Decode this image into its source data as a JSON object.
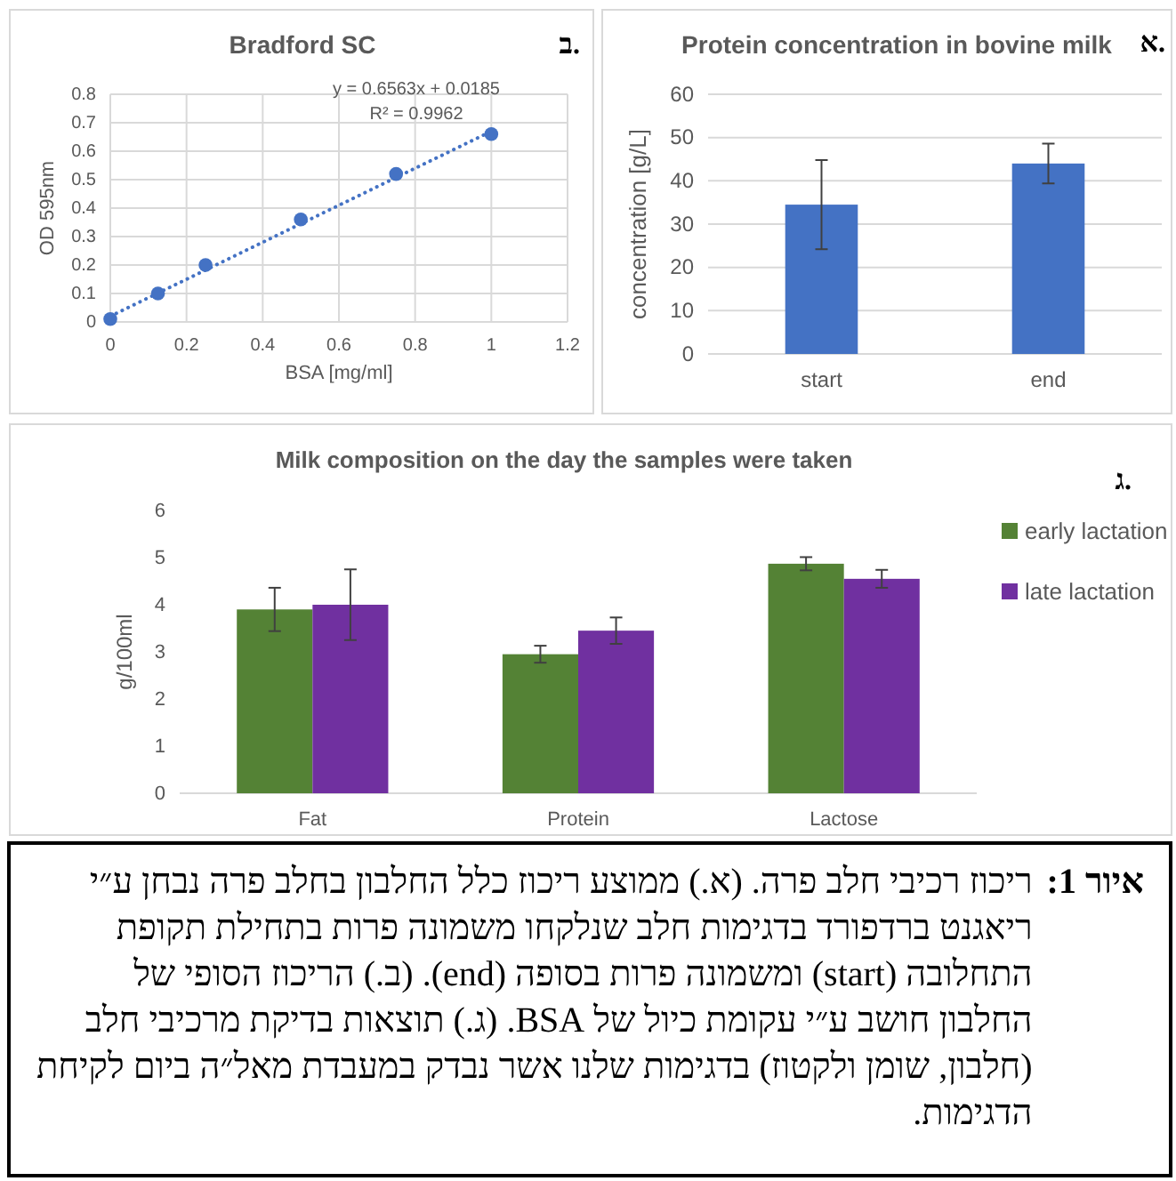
{
  "chart_data": [
    {
      "type": "scatter",
      "title": "Bradford SC",
      "xlabel": "BSA [mg/ml]",
      "ylabel": "OD 595nm",
      "xlim": [
        0,
        1.2
      ],
      "xticks": [
        0,
        0.2,
        0.4,
        0.6,
        0.8,
        1,
        1.2
      ],
      "ylim": [
        0,
        0.8
      ],
      "yticks": [
        0,
        0.1,
        0.2,
        0.3,
        0.4,
        0.5,
        0.6,
        0.7,
        0.8
      ],
      "grid": true,
      "series": [
        {
          "type": "scatter",
          "marker": "circle",
          "color": "#4472c4",
          "x": [
            0,
            0.125,
            0.25,
            0.5,
            0.75,
            1
          ],
          "values": [
            0.01,
            0.1,
            0.2,
            0.36,
            0.52,
            0.66
          ]
        },
        {
          "type": "line",
          "line_style": "dotted",
          "color": "#4472c4",
          "x": [
            0,
            1
          ],
          "values": [
            0.02,
            0.67
          ]
        }
      ],
      "annotations": [
        "y = 0.6563x + 0.0185",
        "R² = 0.9962",
        "ב."
      ]
    },
    {
      "type": "bar",
      "title": "Protein concentration in bovine milk",
      "ylabel": "concentration [g/L]",
      "categories": [
        "start",
        "end"
      ],
      "values": [
        34.5,
        44
      ],
      "errors": [
        10.3,
        4.6
      ],
      "color": "#4472c4",
      "ylim": [
        0,
        60
      ],
      "yticks": [
        0,
        10,
        20,
        30,
        40,
        50,
        60
      ],
      "grid": "y",
      "annotations": [
        "א."
      ]
    },
    {
      "type": "bar",
      "title": "Milk composition on the day the samples were taken",
      "ylabel": "g/100ml",
      "categories": [
        "Fat",
        "Protein",
        "Lactose"
      ],
      "series": [
        {
          "name": "early lactation",
          "color": "#548235",
          "values": [
            3.9,
            2.95,
            4.87
          ],
          "errors": [
            0.46,
            0.18,
            0.14
          ]
        },
        {
          "name": "late lactation",
          "color": "#7030a0",
          "values": [
            4.0,
            3.45,
            4.55
          ],
          "errors": [
            0.75,
            0.28,
            0.19
          ]
        }
      ],
      "ylim": [
        0,
        6
      ],
      "yticks": [
        0,
        1,
        2,
        3,
        4,
        5,
        6
      ],
      "legend": "right",
      "annotations": [
        "ג."
      ]
    },
    {
      "type": "other",
      "title": "איור 1:",
      "annotations": [
        "ריכוז רכיבי חלב פרה. (א.) ממוצע ריכוז כלל החלבון בחלב פרה נבחן ע״י ריאגנט ברדפורד בדגימות חלב שנלקחו משמונה פרות בתחילת תקופת התחלובה (start) ומשמונה פרות בסופה (end). (ב.) הריכוז הסופי של החלבון חושב ע״י עקומת כיול של BSA. (ג.) תוצאות בדיקת מרכיבי חלב (חלבון, שומן ולקטוז) בדגימות שלנו אשר נבדק במעבדת מאל״ה ביום לקיחת הדגימות."
      ]
    }
  ]
}
